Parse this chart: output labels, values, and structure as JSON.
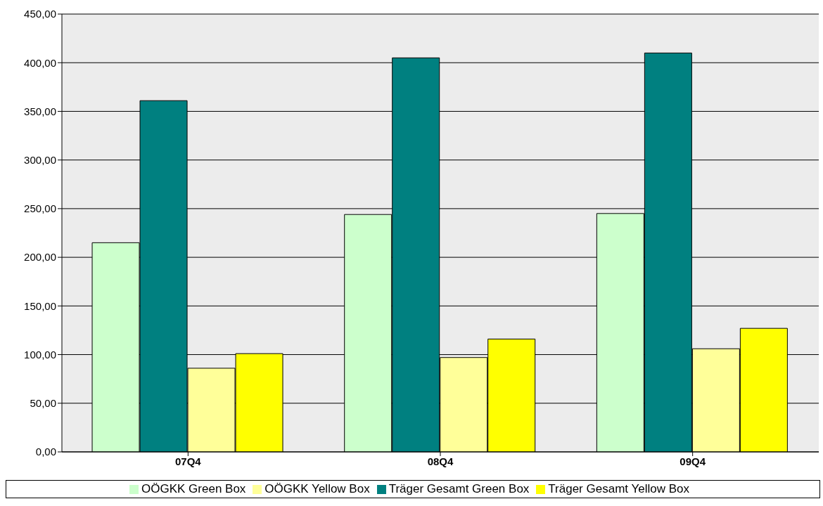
{
  "chart_data": {
    "type": "bar",
    "categories": [
      "07Q4",
      "08Q4",
      "09Q4"
    ],
    "series": [
      {
        "name": "OÖGKK Green Box",
        "color": "#ccffcc",
        "values": [
          215,
          244,
          245
        ]
      },
      {
        "name": "Träger Gesamt Green Box",
        "color": "#008080",
        "values": [
          361,
          405,
          410
        ]
      },
      {
        "name": "OÖGKK Yellow Box",
        "color": "#ffff99",
        "values": [
          86,
          97,
          106
        ]
      },
      {
        "name": "Träger Gesamt Yellow Box",
        "color": "#ffff00",
        "values": [
          101,
          116,
          127
        ]
      }
    ],
    "ylim": [
      0,
      450
    ],
    "yticks": [
      {
        "value": 0,
        "label": "0,00"
      },
      {
        "value": 50,
        "label": "50,00"
      },
      {
        "value": 100,
        "label": "100,00"
      },
      {
        "value": 150,
        "label": "150,00"
      },
      {
        "value": 200,
        "label": "200,00"
      },
      {
        "value": 250,
        "label": "250,00"
      },
      {
        "value": 300,
        "label": "300,00"
      },
      {
        "value": 350,
        "label": "350,00"
      },
      {
        "value": 400,
        "label": "400,00"
      },
      {
        "value": 450,
        "label": "450,00"
      }
    ],
    "grid": "y",
    "legend": "bottom"
  }
}
